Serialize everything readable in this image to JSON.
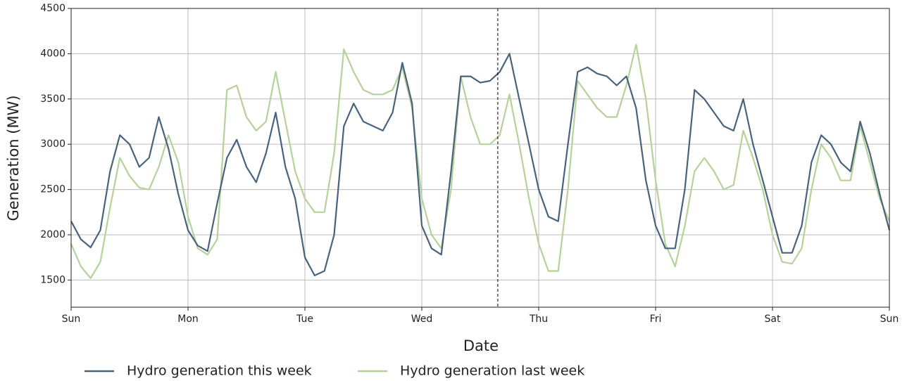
{
  "chart_data": {
    "type": "line",
    "x_label": "Date",
    "y_label": "Generation (MW)",
    "categories": [
      "Sun",
      null,
      null,
      null,
      null,
      null,
      null,
      null,
      null,
      null,
      null,
      null,
      "Mon",
      null,
      null,
      null,
      null,
      null,
      null,
      null,
      null,
      null,
      null,
      null,
      "Tue",
      null,
      null,
      null,
      null,
      null,
      null,
      null,
      null,
      null,
      null,
      null,
      "Wed",
      null,
      null,
      null,
      null,
      null,
      null,
      null,
      null,
      null,
      null,
      null,
      "Thu",
      null,
      null,
      null,
      null,
      null,
      null,
      null,
      null,
      null,
      null,
      null,
      "Fri",
      null,
      null,
      null,
      null,
      null,
      null,
      null,
      null,
      null,
      null,
      null,
      "Sat",
      null,
      null,
      null,
      null,
      null,
      null,
      null,
      null,
      null,
      null,
      null,
      "Sun"
    ],
    "series": [
      {
        "name": "Hydro generation this week",
        "color": "#48637c",
        "values": [
          2150,
          1950,
          1860,
          2050,
          2700,
          3100,
          3000,
          2750,
          2850,
          3300,
          2950,
          2450,
          2050,
          1880,
          1820,
          2350,
          2850,
          3050,
          2750,
          2580,
          2900,
          3350,
          2750,
          2400,
          1750,
          1550,
          1600,
          2000,
          3200,
          3450,
          3250,
          3200,
          3150,
          3350,
          3900,
          3450,
          2100,
          1850,
          1780,
          2700,
          3750,
          3750,
          3680,
          3700,
          3800,
          4000,
          3500,
          3000,
          2500,
          2200,
          2150,
          3000,
          3800,
          3850,
          3780,
          3750,
          3650,
          3750,
          3400,
          2600,
          2100,
          1850,
          1850,
          2500,
          3600,
          3500,
          3350,
          3200,
          3150,
          3500,
          3000,
          2600,
          2200,
          1800,
          1800,
          2100,
          2800,
          3100,
          3000,
          2800,
          2700,
          3250,
          2900,
          2450,
          2050
        ]
      },
      {
        "name": "Hydro generation last week",
        "color": "#b5d29a",
        "values": [
          1900,
          1650,
          1520,
          1700,
          2300,
          2850,
          2650,
          2520,
          2500,
          2750,
          3100,
          2800,
          2200,
          1850,
          1780,
          1950,
          3600,
          3650,
          3300,
          3150,
          3250,
          3800,
          3250,
          2700,
          2400,
          2250,
          2250,
          2900,
          4050,
          3800,
          3600,
          3550,
          3550,
          3600,
          3850,
          3400,
          2400,
          2000,
          1850,
          2500,
          3750,
          3300,
          3000,
          3000,
          3100,
          3550,
          3000,
          2400,
          1900,
          1600,
          1600,
          2500,
          3700,
          3550,
          3400,
          3300,
          3300,
          3650,
          4100,
          3500,
          2600,
          1900,
          1650,
          2100,
          2700,
          2850,
          2700,
          2500,
          2550,
          3150,
          2850,
          2500,
          2000,
          1700,
          1680,
          1850,
          2500,
          3000,
          2850,
          2600,
          2600,
          3200,
          2800,
          2400,
          2150
        ]
      }
    ],
    "ylim": [
      1200,
      4500
    ],
    "yticks": [
      1500,
      2000,
      2500,
      3000,
      3500,
      4000,
      4500
    ],
    "grid": true,
    "vline": 43.8,
    "legend": "bottom"
  }
}
